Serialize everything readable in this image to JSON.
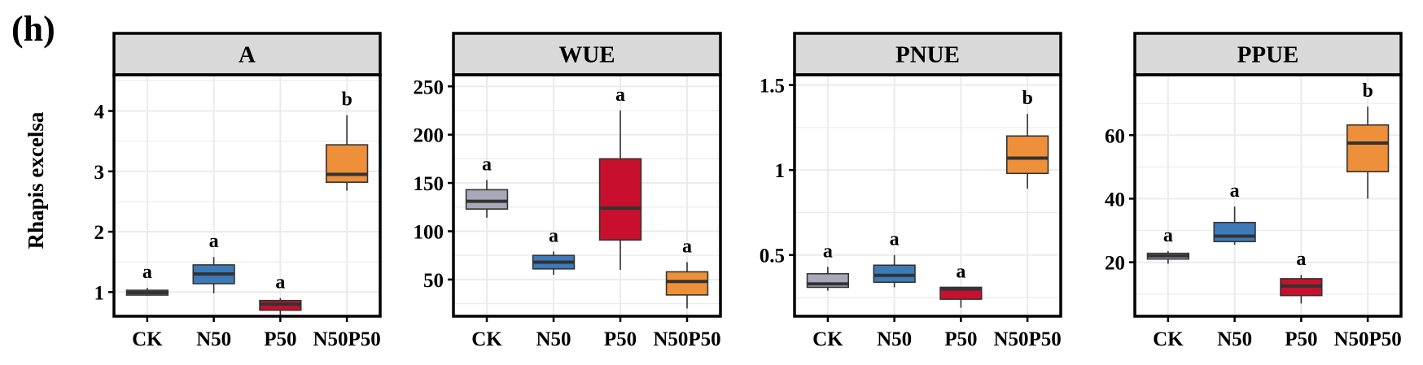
{
  "figure": {
    "panel_tag": "(h)",
    "row_label": "Rhapis excelsa"
  },
  "colors": {
    "CK": "#a9a8b8",
    "N50": "#3d7ab8",
    "P50": "#c8102e",
    "N50P50": "#ee8f3a",
    "strip_bg": "#d9d9d9",
    "grid": "#ebebeb",
    "median": "#333333"
  },
  "chart_data": [
    {
      "type": "box",
      "title": "A",
      "categories": [
        "CK",
        "N50",
        "P50",
        "N50P50"
      ],
      "ylim": [
        0.6,
        4.6
      ],
      "yticks": [
        1,
        2,
        3,
        4
      ],
      "grid": true,
      "boxes": [
        {
          "category": "CK",
          "min": 0.94,
          "q1": 0.95,
          "median": 0.99,
          "q3": 1.03,
          "max": 1.07,
          "letter": "a"
        },
        {
          "category": "N50",
          "min": 0.98,
          "q1": 1.14,
          "median": 1.3,
          "q3": 1.45,
          "max": 1.58,
          "letter": "a"
        },
        {
          "category": "P50",
          "min": 0.58,
          "q1": 0.7,
          "median": 0.8,
          "q3": 0.86,
          "max": 0.9,
          "letter": "a"
        },
        {
          "category": "N50P50",
          "min": 2.68,
          "q1": 2.82,
          "median": 2.95,
          "q3": 3.44,
          "max": 3.93,
          "letter": "b"
        }
      ]
    },
    {
      "type": "box",
      "title": "WUE",
      "categories": [
        "CK",
        "N50",
        "P50",
        "N50P50"
      ],
      "ylim": [
        12,
        262
      ],
      "yticks": [
        50,
        100,
        150,
        200,
        250
      ],
      "grid": true,
      "boxes": [
        {
          "category": "CK",
          "min": 114,
          "q1": 123,
          "median": 131,
          "q3": 143,
          "max": 153,
          "letter": "a"
        },
        {
          "category": "N50",
          "min": 55,
          "q1": 61,
          "median": 68,
          "q3": 75,
          "max": 79,
          "letter": "a"
        },
        {
          "category": "P50",
          "min": 60,
          "q1": 91,
          "median": 124,
          "q3": 175,
          "max": 225,
          "letter": "a"
        },
        {
          "category": "N50P50",
          "min": 20,
          "q1": 34,
          "median": 48,
          "q3": 58,
          "max": 68,
          "letter": "a"
        }
      ]
    },
    {
      "type": "box",
      "title": "PNUE",
      "categories": [
        "CK",
        "N50",
        "P50",
        "N50P50"
      ],
      "ylim": [
        0.14,
        1.56
      ],
      "yticks": [
        0.5,
        1.0,
        1.5
      ],
      "grid": true,
      "boxes": [
        {
          "category": "CK",
          "min": 0.29,
          "q1": 0.31,
          "median": 0.33,
          "q3": 0.39,
          "max": 0.43,
          "letter": "a"
        },
        {
          "category": "N50",
          "min": 0.31,
          "q1": 0.34,
          "median": 0.38,
          "q3": 0.44,
          "max": 0.5,
          "letter": "a"
        },
        {
          "category": "P50",
          "min": 0.19,
          "q1": 0.24,
          "median": 0.3,
          "q3": 0.31,
          "max": 0.31,
          "letter": "a"
        },
        {
          "category": "N50P50",
          "min": 0.89,
          "q1": 0.98,
          "median": 1.07,
          "q3": 1.2,
          "max": 1.33,
          "letter": "b"
        }
      ]
    },
    {
      "type": "box",
      "title": "PPUE",
      "categories": [
        "CK",
        "N50",
        "P50",
        "N50P50"
      ],
      "ylim": [
        3,
        79
      ],
      "yticks": [
        20,
        40,
        60
      ],
      "grid": true,
      "boxes": [
        {
          "category": "CK",
          "min": 19.5,
          "q1": 21,
          "median": 22,
          "q3": 22.8,
          "max": 23.5,
          "letter": "a"
        },
        {
          "category": "N50",
          "min": 25.5,
          "q1": 26.5,
          "median": 28.2,
          "q3": 32.5,
          "max": 37.5,
          "letter": "a"
        },
        {
          "category": "P50",
          "min": 7,
          "q1": 9.5,
          "median": 12.5,
          "q3": 14.8,
          "max": 16,
          "letter": "a"
        },
        {
          "category": "N50P50",
          "min": 40,
          "q1": 48.5,
          "median": 57.5,
          "q3": 63.2,
          "max": 69,
          "letter": "b"
        }
      ]
    }
  ]
}
